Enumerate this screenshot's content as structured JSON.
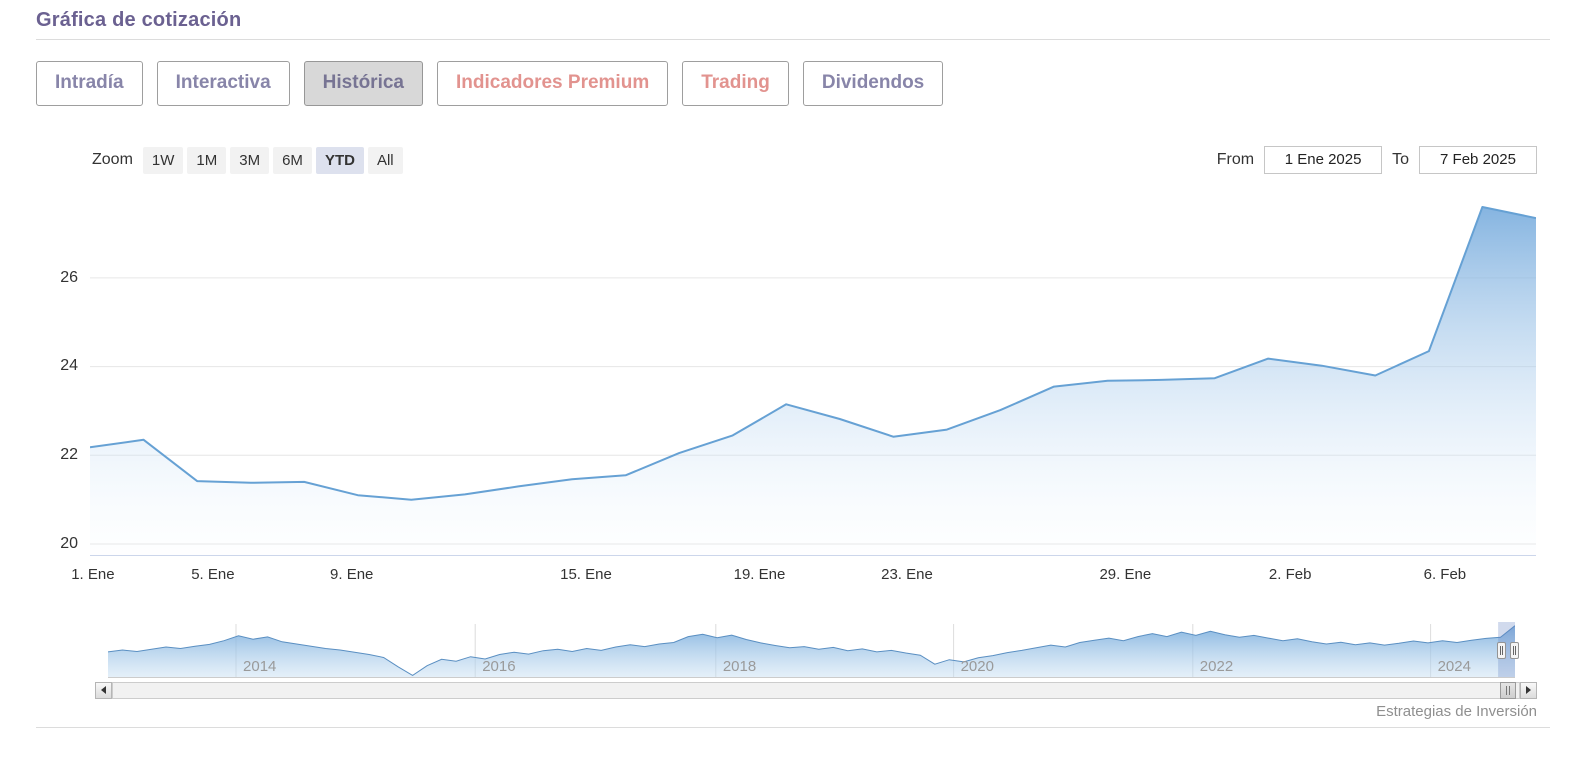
{
  "page": {
    "title": "Gráfica de cotización",
    "credits": "Estrategias de Inversión"
  },
  "tabs": [
    {
      "label": "Intradía",
      "variant": "purple",
      "active": false
    },
    {
      "label": "Interactiva",
      "variant": "purple",
      "active": false
    },
    {
      "label": "Histórica",
      "variant": "purple",
      "active": true
    },
    {
      "label": "Indicadores Premium",
      "variant": "salmon",
      "active": false
    },
    {
      "label": "Trading",
      "variant": "salmon",
      "active": false
    },
    {
      "label": "Dividendos",
      "variant": "purple",
      "active": false
    }
  ],
  "range_selector": {
    "zoom_label": "Zoom",
    "buttons": [
      {
        "label": "1W",
        "active": false
      },
      {
        "label": "1M",
        "active": false
      },
      {
        "label": "3M",
        "active": false
      },
      {
        "label": "6M",
        "active": false
      },
      {
        "label": "YTD",
        "active": true
      },
      {
        "label": "All",
        "active": false
      }
    ],
    "from_label": "From",
    "from_value": "1 Ene 2025",
    "to_label": "To",
    "to_value": "7 Feb 2025"
  },
  "chart_data": {
    "type": "area",
    "title": "Gráfica de cotización (Histórica, YTD)",
    "xlabel": "",
    "ylabel": "",
    "x": [
      "1 Ene",
      "2 Ene",
      "3 Ene",
      "6 Ene",
      "7 Ene",
      "8 Ene",
      "9 Ene",
      "10 Ene",
      "13 Ene",
      "14 Ene",
      "15 Ene",
      "16 Ene",
      "17 Ene",
      "20 Ene",
      "21 Ene",
      "22 Ene",
      "23 Ene",
      "24 Ene",
      "27 Ene",
      "28 Ene",
      "29 Ene",
      "30 Ene",
      "31 Ene",
      "3 Feb",
      "4 Feb",
      "5 Feb",
      "6 Feb",
      "7 Feb"
    ],
    "values": [
      22.18,
      22.35,
      21.42,
      21.38,
      21.4,
      21.1,
      21.0,
      21.12,
      21.3,
      21.46,
      21.55,
      22.05,
      22.45,
      23.15,
      22.82,
      22.42,
      22.58,
      23.02,
      23.55,
      23.68,
      23.7,
      23.74,
      24.18,
      24.02,
      23.8,
      24.35,
      27.6,
      27.35
    ],
    "ylim": [
      19.73,
      27.87
    ],
    "yticks": [
      20,
      22,
      24,
      26
    ],
    "xticks": [
      {
        "label": "1. Ene",
        "pos": 0.002
      },
      {
        "label": "5. Ene",
        "pos": 0.085
      },
      {
        "label": "9. Ene",
        "pos": 0.181
      },
      {
        "label": "15. Ene",
        "pos": 0.343
      },
      {
        "label": "19. Ene",
        "pos": 0.463
      },
      {
        "label": "23. Ene",
        "pos": 0.565
      },
      {
        "label": "29. Ene",
        "pos": 0.716
      },
      {
        "label": "2. Feb",
        "pos": 0.83
      },
      {
        "label": "6. Feb",
        "pos": 0.937
      }
    ],
    "grid": true,
    "legend": false,
    "navigator": {
      "description": "full-history mini chart 2013-2025, values estimated",
      "values": [
        20.5,
        21.0,
        20.6,
        21.2,
        21.8,
        21.4,
        22.0,
        22.5,
        23.5,
        24.8,
        23.9,
        24.5,
        23.2,
        22.6,
        22.0,
        21.4,
        21.0,
        20.4,
        19.8,
        19.0,
        16.5,
        14.2,
        16.8,
        18.5,
        18.0,
        19.2,
        18.6,
        19.8,
        20.4,
        19.9,
        20.8,
        21.2,
        20.6,
        21.4,
        20.9,
        21.8,
        22.4,
        21.9,
        22.6,
        23.0,
        24.6,
        25.2,
        24.3,
        25.0,
        23.8,
        22.9,
        22.2,
        21.6,
        21.9,
        21.2,
        21.7,
        20.8,
        21.3,
        20.5,
        20.9,
        20.2,
        19.6,
        17.2,
        18.4,
        17.8,
        18.9,
        19.5,
        20.3,
        20.9,
        21.6,
        22.3,
        21.8,
        23.0,
        23.6,
        24.2,
        23.5,
        24.6,
        25.4,
        24.6,
        25.8,
        24.9,
        26.0,
        25.1,
        24.4,
        24.9,
        24.2,
        23.5,
        24.0,
        23.2,
        22.6,
        23.1,
        22.4,
        22.9,
        22.3,
        22.8,
        23.4,
        22.9,
        23.5,
        23.0,
        23.6,
        24.1,
        24.4,
        27.5
      ],
      "ylim": [
        13.5,
        28.5
      ],
      "year_ticks": [
        {
          "label": "2014",
          "pos": 0.091
        },
        {
          "label": "2016",
          "pos": 0.261
        },
        {
          "label": "2018",
          "pos": 0.432
        },
        {
          "label": "2020",
          "pos": 0.601
        },
        {
          "label": "2022",
          "pos": 0.771
        },
        {
          "label": "2024",
          "pos": 0.94
        }
      ],
      "selected_range": [
        0.988,
        1.0
      ]
    }
  },
  "colors": {
    "title_purple": "#6b6191",
    "tab_purple": "#8885a9",
    "tab_salmon": "#e2938f",
    "tab_active_bg": "#d8d8d8",
    "range_active_bg": "#dde1ee",
    "line": "#66a1d4",
    "area_top": "rgba(112,167,219,0.85)",
    "area_bottom": "rgba(240,248,255,0.08)",
    "nav_line": "#5a8fc2",
    "nav_area_top": "rgba(120,172,220,0.9)",
    "nav_area_bottom": "rgba(198,222,242,0.45)",
    "grid": "#e6e6e6",
    "axis_line": "#ccd6eb",
    "nav_grid": "#dcdcdc",
    "nav_mask": "rgba(102,133,194,0.3)"
  }
}
